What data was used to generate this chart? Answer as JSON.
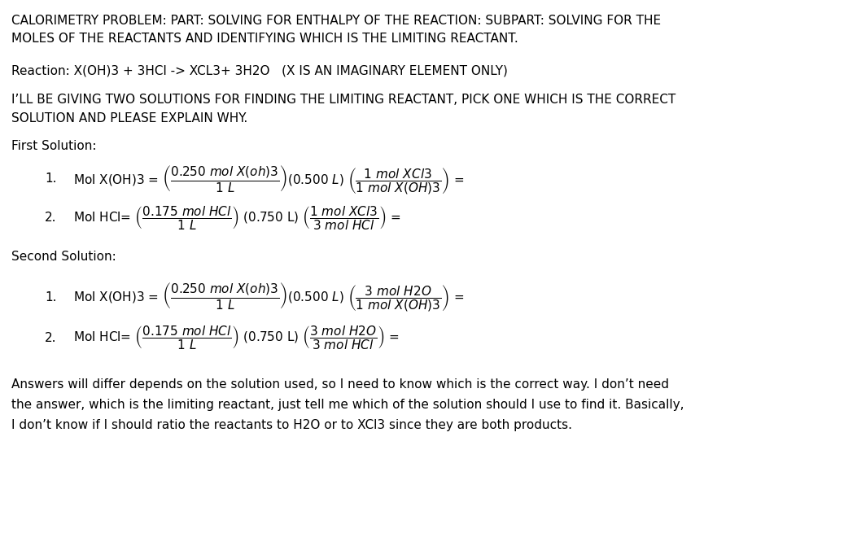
{
  "bg_color": "#ffffff",
  "text_color": "#000000",
  "figsize": [
    10.53,
    6.71
  ],
  "dpi": 100,
  "title_line1": "CALORIMETRY PROBLEM: PART: SOLVING FOR ENTHALPY OF THE REACTION: SUBPART: SOLVING FOR THE",
  "title_line2": "MOLES OF THE REACTANTS AND IDENTIFYING WHICH IS THE LIMITING REACTANT.",
  "reaction_line": "Reaction: X(OH)3 + 3HCl -> XCL3+ 3H2O   (X IS AN IMAGINARY ELEMENT ONLY)",
  "intro_line1": "I’LL BE GIVING TWO SOLUTIONS FOR FINDING THE LIMITING REACTANT, PICK ONE WHICH IS THE CORRECT",
  "intro_line2": "SOLUTION AND PLEASE EXPLAIN WHY.",
  "first_solution_label": "First Solution:",
  "second_solution_label": "Second Solution:",
  "footer_line1": "Answers will differ depends on the solution used, so I need to know which is the correct way. I don’t need",
  "footer_line2": "the answer, which is the limiting reactant, just tell me which of the solution should I use to find it. Basically,",
  "footer_line3": "I don’t know if I should ratio the reactants to H2O or to XCl3 since they are both products."
}
